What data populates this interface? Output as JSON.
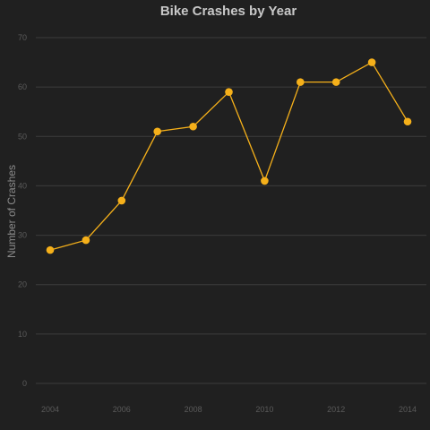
{
  "chart_data": {
    "type": "line",
    "title": "Bike Crashes by Year",
    "xlabel": "",
    "ylabel": "Number of Crashes",
    "x": [
      2004,
      2005,
      2006,
      2007,
      2008,
      2009,
      2010,
      2011,
      2012,
      2013,
      2014
    ],
    "series": [
      {
        "values": [
          27,
          29,
          37,
          51,
          52,
          59,
          41,
          61,
          61,
          65,
          53
        ]
      }
    ],
    "xticks": [
      "2004",
      "2006",
      "2008",
      "2010",
      "2012",
      "2014"
    ],
    "yticks": [
      "0",
      "10",
      "20",
      "30",
      "40",
      "50",
      "60",
      "70"
    ],
    "xlim": [
      2004,
      2014
    ],
    "ylim": [
      0,
      70
    ],
    "grid": true,
    "legend": "none",
    "colors": {
      "series": "#f5b01a",
      "background": "#202020"
    }
  }
}
